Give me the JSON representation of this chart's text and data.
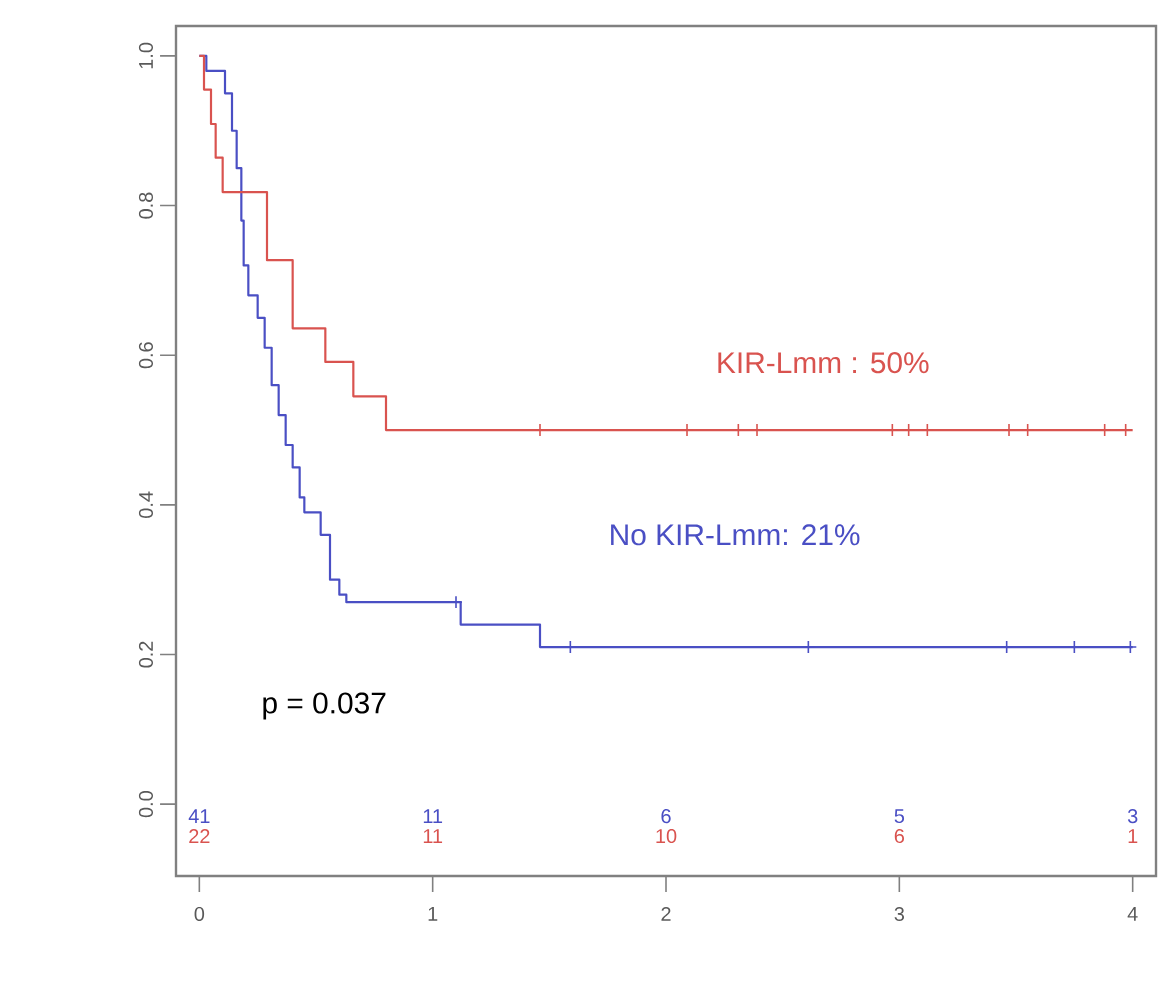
{
  "chart_data": {
    "type": "step",
    "xlim": [
      -0.1,
      4.1
    ],
    "ylim": [
      -0.096,
      1.04
    ],
    "xticks": [
      0,
      1,
      2,
      3,
      4
    ],
    "yticks": [
      {
        "value": 0,
        "label": "0.0"
      },
      0.2,
      0.4,
      0.6,
      0.8,
      {
        "value": 1,
        "label": "1.0"
      }
    ],
    "series": [
      {
        "name": "No KIR-Lmm: 21%",
        "color": "#4a4fc4",
        "marker": "none",
        "x": [
          0,
          0.03,
          0.11,
          0.14,
          0.16,
          0.18,
          0.19,
          0.21,
          0.25,
          0.28,
          0.31,
          0.34,
          0.37,
          0.4,
          0.43,
          0.45,
          0.52,
          0.56,
          0.6,
          0.63,
          1.12,
          1.46,
          4.0
        ],
        "values": [
          1.0,
          0.98,
          0.95,
          0.9,
          0.85,
          0.78,
          0.72,
          0.68,
          0.65,
          0.61,
          0.56,
          0.52,
          0.48,
          0.45,
          0.41,
          0.39,
          0.36,
          0.3,
          0.28,
          0.27,
          0.24,
          0.21,
          0.21
        ]
      },
      {
        "name": "KIR-Lmm : 50%",
        "color": "#d9534f",
        "marker": "none",
        "x": [
          0,
          0.02,
          0.05,
          0.07,
          0.1,
          0.29,
          0.4,
          0.54,
          0.66,
          0.8,
          4.0
        ],
        "values": [
          1,
          0.955,
          0.909,
          0.864,
          0.818,
          0.727,
          0.636,
          0.591,
          0.545,
          0.5,
          0.5
        ]
      },
      {
        "color": "#4a4fc4",
        "type": "scatter",
        "marker": "cross",
        "x": [
          1.1,
          1.59,
          2.61,
          3.46,
          3.75,
          3.99
        ],
        "values": [
          0.27,
          0.21,
          0.21,
          0.21,
          0.21,
          0.21
        ]
      },
      {
        "color": "#d9534f",
        "type": "scatter",
        "marker": "cross",
        "x": [
          1.46,
          2.09,
          2.31,
          2.39,
          2.97,
          3.04,
          3.12,
          3.47,
          3.55,
          3.88,
          3.97
        ],
        "values": [
          0.5,
          0.5,
          0.5,
          0.5,
          0.5,
          0.5,
          0.5,
          0.5,
          0.5,
          0.5,
          0.5
        ]
      }
    ],
    "annotations": [
      "p = 0.037",
      "41",
      "11",
      "6",
      "5",
      "3",
      "22",
      "11",
      "10",
      "6",
      "1"
    ]
  }
}
